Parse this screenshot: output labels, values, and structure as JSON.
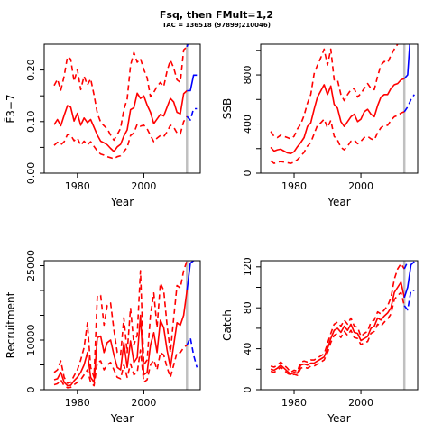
{
  "figure": {
    "title": "Fsq, then FMult=1,2",
    "subtitle": "TAC = 136518 (97899;210046)"
  },
  "colors": {
    "history": "#ff0000",
    "projection": "#0000ff",
    "marker": "#c0c0c0"
  },
  "chart_data": [
    {
      "type": "line",
      "id": "fbar",
      "xlabel": "Year",
      "ylabel": "F̄3−7",
      "xlim": [
        1970,
        2017
      ],
      "ylim": [
        0,
        0.25
      ],
      "xticks": [
        1980,
        2000
      ],
      "xtick_labels": [
        "1980",
        "2000"
      ],
      "yticks": [
        0,
        0.05,
        0.1,
        0.15,
        0.2
      ],
      "ytick_labels": [
        "0.00",
        "",
        "0.10",
        "",
        "0.20"
      ],
      "marker_year": 2013,
      "history_x": [
        1973,
        1974,
        1975,
        1976,
        1977,
        1978,
        1979,
        1980,
        1981,
        1982,
        1983,
        1984,
        1985,
        1986,
        1987,
        1988,
        1989,
        1990,
        1991,
        1992,
        1993,
        1994,
        1995,
        1996,
        1997,
        1998,
        1999,
        2000,
        2001,
        2002,
        2003,
        2004,
        2005,
        2006,
        2007,
        2008,
        2009,
        2010,
        2011,
        2012,
        2013
      ],
      "history_mid": [
        0.094,
        0.104,
        0.092,
        0.112,
        0.131,
        0.128,
        0.101,
        0.116,
        0.093,
        0.107,
        0.098,
        0.104,
        0.089,
        0.074,
        0.062,
        0.059,
        0.055,
        0.048,
        0.042,
        0.051,
        0.056,
        0.072,
        0.084,
        0.123,
        0.127,
        0.155,
        0.145,
        0.15,
        0.132,
        0.118,
        0.096,
        0.105,
        0.114,
        0.111,
        0.128,
        0.145,
        0.138,
        0.118,
        0.115,
        0.154,
        0.16
      ],
      "history_hi": [
        0.17,
        0.182,
        0.161,
        0.188,
        0.226,
        0.221,
        0.178,
        0.201,
        0.162,
        0.188,
        0.171,
        0.183,
        0.152,
        0.116,
        0.099,
        0.092,
        0.086,
        0.074,
        0.064,
        0.075,
        0.087,
        0.123,
        0.144,
        0.209,
        0.234,
        0.215,
        0.222,
        0.201,
        0.185,
        0.148,
        0.157,
        0.168,
        0.176,
        0.168,
        0.198,
        0.219,
        0.204,
        0.181,
        0.176,
        0.239,
        0.245
      ],
      "history_lo": [
        0.054,
        0.06,
        0.055,
        0.061,
        0.075,
        0.074,
        0.063,
        0.068,
        0.054,
        0.062,
        0.055,
        0.061,
        0.052,
        0.043,
        0.037,
        0.035,
        0.032,
        0.03,
        0.028,
        0.032,
        0.034,
        0.042,
        0.05,
        0.073,
        0.078,
        0.095,
        0.091,
        0.093,
        0.086,
        0.073,
        0.061,
        0.068,
        0.073,
        0.071,
        0.08,
        0.093,
        0.089,
        0.078,
        0.076,
        0.1,
        0.11
      ],
      "projection_x": [
        2013,
        2014,
        2015,
        2016
      ],
      "projection_mid": [
        0.16,
        0.16,
        0.19,
        0.19
      ],
      "projection_hi": [
        0.245,
        0.265,
        0.3,
        0.3
      ],
      "projection_lo": [
        0.11,
        0.103,
        0.125,
        0.125
      ]
    },
    {
      "type": "line",
      "id": "ssb",
      "xlabel": "Year",
      "ylabel": "SSB",
      "xlim": [
        1970,
        2017
      ],
      "ylim": [
        0,
        1050
      ],
      "xticks": [
        1980,
        2000
      ],
      "xtick_labels": [
        "1980",
        "2000"
      ],
      "yticks": [
        0,
        200,
        400,
        600,
        800,
        1000
      ],
      "ytick_labels": [
        "0",
        "",
        "400",
        "",
        "800",
        ""
      ],
      "marker_year": 2013,
      "history_x": [
        1973,
        1974,
        1975,
        1976,
        1977,
        1978,
        1979,
        1980,
        1981,
        1982,
        1983,
        1984,
        1985,
        1986,
        1987,
        1988,
        1989,
        1990,
        1991,
        1992,
        1993,
        1994,
        1995,
        1996,
        1997,
        1998,
        1999,
        2000,
        2001,
        2002,
        2003,
        2004,
        2005,
        2006,
        2007,
        2008,
        2009,
        2010,
        2011,
        2012,
        2013
      ],
      "history_mid": [
        210,
        180,
        190,
        195,
        180,
        165,
        160,
        175,
        215,
        250,
        290,
        380,
        410,
        520,
        620,
        670,
        720,
        640,
        710,
        560,
        530,
        420,
        380,
        420,
        460,
        480,
        420,
        440,
        500,
        520,
        480,
        460,
        550,
        620,
        640,
        640,
        690,
        720,
        730,
        760,
        770
      ],
      "history_hi": [
        340,
        300,
        290,
        310,
        300,
        290,
        280,
        300,
        360,
        400,
        470,
        570,
        640,
        810,
        880,
        940,
        1010,
        880,
        1010,
        760,
        760,
        640,
        590,
        640,
        680,
        690,
        620,
        650,
        690,
        730,
        690,
        680,
        790,
        880,
        910,
        900,
        960,
        1010,
        1050,
        1080,
        1090
      ],
      "history_lo": [
        100,
        80,
        90,
        95,
        90,
        85,
        80,
        90,
        110,
        140,
        170,
        220,
        250,
        320,
        390,
        410,
        440,
        370,
        430,
        300,
        270,
        210,
        190,
        220,
        260,
        270,
        240,
        260,
        290,
        300,
        280,
        270,
        330,
        370,
        390,
        390,
        430,
        460,
        470,
        490,
        500
      ],
      "projection_x": [
        2013,
        2014,
        2015,
        2016
      ],
      "projection_mid": [
        770,
        800,
        1200,
        1260
      ],
      "projection_hi": [
        1090,
        1300,
        1450,
        1500
      ],
      "projection_lo": [
        500,
        540,
        600,
        640
      ]
    },
    {
      "type": "line",
      "id": "recruitment",
      "xlabel": "Year",
      "ylabel": "Recruitment",
      "xlim": [
        1970,
        2017
      ],
      "ylim": [
        0,
        26000
      ],
      "xticks": [
        1980,
        2000
      ],
      "xtick_labels": [
        "1980",
        "2000"
      ],
      "yticks": [
        0,
        5000,
        10000,
        15000,
        20000,
        25000
      ],
      "ytick_labels": [
        "0",
        "",
        "10000",
        "",
        "",
        "25000"
      ],
      "marker_year": 2013,
      "history_x": [
        1973,
        1974,
        1975,
        1976,
        1977,
        1978,
        1979,
        1980,
        1981,
        1982,
        1983,
        1984,
        1985,
        1986,
        1987,
        1988,
        1989,
        1990,
        1991,
        1992,
        1993,
        1994,
        1995,
        1996,
        1997,
        1998,
        1999,
        2000,
        2001,
        2002,
        2003,
        2004,
        2005,
        2006,
        2007,
        2008,
        2009,
        2010,
        2011,
        2012,
        2013
      ],
      "history_mid": [
        2000,
        2200,
        3500,
        1500,
        800,
        900,
        1800,
        2500,
        3500,
        5000,
        7500,
        2500,
        1500,
        10500,
        10800,
        7500,
        9500,
        10000,
        7000,
        4500,
        4000,
        9500,
        4500,
        9800,
        5500,
        6500,
        15000,
        3000,
        3500,
        9000,
        11500,
        7500,
        14000,
        12500,
        8000,
        4500,
        9000,
        13500,
        13000,
        15000,
        20000
      ],
      "history_hi": [
        3500,
        4000,
        5800,
        2500,
        1300,
        1500,
        2800,
        4000,
        6000,
        8500,
        13500,
        4500,
        2500,
        19000,
        19000,
        13000,
        17000,
        17500,
        12000,
        7500,
        7000,
        14500,
        7500,
        16500,
        9000,
        11000,
        24000,
        5000,
        6000,
        15000,
        19500,
        12500,
        21500,
        20000,
        13000,
        7500,
        14500,
        21000,
        20500,
        24000,
        26000
      ],
      "history_lo": [
        1000,
        1200,
        2000,
        800,
        400,
        500,
        1000,
        1500,
        2000,
        3000,
        4000,
        1500,
        800,
        5500,
        5800,
        4000,
        5000,
        5500,
        4000,
        2500,
        2200,
        5000,
        2500,
        5200,
        3000,
        3500,
        8000,
        1500,
        2000,
        5000,
        6000,
        4000,
        7500,
        7000,
        4500,
        2500,
        5000,
        7500,
        7500,
        8500,
        9000
      ],
      "projection_x": [
        2013,
        2014,
        2015,
        2016
      ],
      "projection_mid": [
        20000,
        25500,
        26000,
        26200
      ],
      "projection_hi": [
        26000,
        27500,
        28000,
        28000
      ],
      "projection_lo": [
        9000,
        10500,
        7000,
        4500
      ]
    },
    {
      "type": "line",
      "id": "catch",
      "xlabel": "Year",
      "ylabel": "Catch",
      "xlim": [
        1970,
        2017
      ],
      "ylim": [
        0,
        126
      ],
      "xticks": [
        1980,
        2000
      ],
      "xtick_labels": [
        "1980",
        "2000"
      ],
      "yticks": [
        0,
        20,
        40,
        60,
        80,
        100,
        120
      ],
      "ytick_labels": [
        "0",
        "",
        "40",
        "",
        "80",
        "",
        "120"
      ],
      "marker_year": 2013,
      "history_x": [
        1973,
        1974,
        1975,
        1976,
        1977,
        1978,
        1979,
        1980,
        1981,
        1982,
        1983,
        1984,
        1985,
        1986,
        1987,
        1988,
        1989,
        1990,
        1991,
        1992,
        1993,
        1994,
        1995,
        1996,
        1997,
        1998,
        1999,
        2000,
        2001,
        2002,
        2003,
        2004,
        2005,
        2006,
        2007,
        2008,
        2009,
        2010,
        2011,
        2012,
        2013
      ],
      "history_mid": [
        20,
        19,
        21,
        24,
        21,
        18,
        15,
        17,
        16,
        24,
        25,
        24,
        26,
        26,
        28,
        30,
        32,
        40,
        50,
        58,
        60,
        56,
        62,
        58,
        64,
        56,
        55,
        48,
        50,
        52,
        60,
        62,
        70,
        68,
        72,
        75,
        80,
        95,
        100,
        105,
        90
      ],
      "history_hi": [
        23,
        22,
        24,
        27,
        24,
        21,
        17,
        19,
        18,
        27,
        28,
        27,
        29,
        29,
        31,
        33,
        35,
        45,
        55,
        64,
        66,
        62,
        68,
        64,
        70,
        62,
        61,
        52,
        55,
        57,
        66,
        68,
        76,
        74,
        78,
        82,
        90,
        108,
        118,
        123,
        118
      ],
      "history_lo": [
        18,
        17,
        19,
        22,
        19,
        16,
        14,
        15,
        14,
        21,
        22,
        21,
        23,
        23,
        25,
        27,
        29,
        36,
        46,
        53,
        55,
        51,
        57,
        53,
        58,
        51,
        50,
        44,
        46,
        47,
        55,
        57,
        64,
        62,
        66,
        69,
        74,
        88,
        92,
        95,
        82
      ],
      "projection_x": [
        2013,
        2014,
        2015,
        2016
      ],
      "projection_mid": [
        90,
        100,
        122,
        125
      ],
      "projection_hi": [
        118,
        125,
        130,
        130
      ],
      "projection_lo": [
        82,
        78,
        97,
        97
      ]
    }
  ]
}
